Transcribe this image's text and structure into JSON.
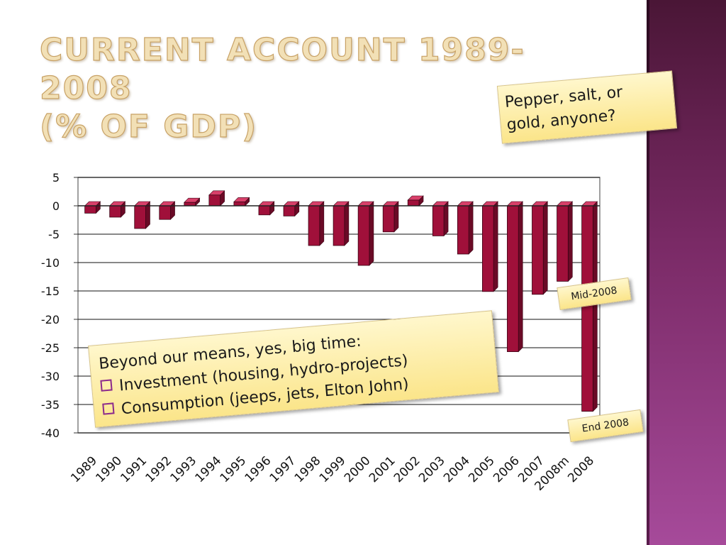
{
  "slide": {
    "title_line1": "CURRENT ACCOUNT 1989-2008",
    "title_line2": "(% OF GDP)",
    "accent_color": "#f2e0b6",
    "side_band_color": "#7a2a66"
  },
  "notes": {
    "pepper_line1": "Pepper, salt, or",
    "pepper_line2": "gold, anyone?",
    "mid": "Mid-2008",
    "end": "End 2008",
    "beyond_heading": "Beyond our means, yes, big time:",
    "beyond_bullets": [
      "Investment (housing, hydro-projects)",
      "Consumption (jeeps, jets, Elton John)"
    ]
  },
  "chart_data": {
    "type": "bar",
    "title": "CURRENT ACCOUNT 1989-2008 (% OF GDP)",
    "categories": [
      "1989",
      "1990",
      "1991",
      "1992",
      "1993",
      "1994",
      "1995",
      "1996",
      "1997",
      "1998",
      "1999",
      "2000",
      "2001",
      "2002",
      "2003",
      "2004",
      "2005",
      "2006",
      "2007",
      "2008m",
      "2008"
    ],
    "values": [
      -1.3,
      -2.0,
      -4.0,
      -2.4,
      0.6,
      1.9,
      0.7,
      -1.6,
      -1.8,
      -7.0,
      -7.0,
      -10.5,
      -4.6,
      1.0,
      -5.3,
      -8.5,
      -15.1,
      -25.7,
      -15.6,
      -13.3,
      -36.2
    ],
    "ylim": [
      -40,
      5
    ],
    "yticks": [
      5,
      0,
      -5,
      -10,
      -15,
      -20,
      -25,
      -30,
      -35,
      -40
    ],
    "grid": true,
    "legend": "none",
    "bar_color": "#a0103a",
    "bar_top_color": "#d8406a",
    "bar_side_color": "#6a0a26"
  }
}
